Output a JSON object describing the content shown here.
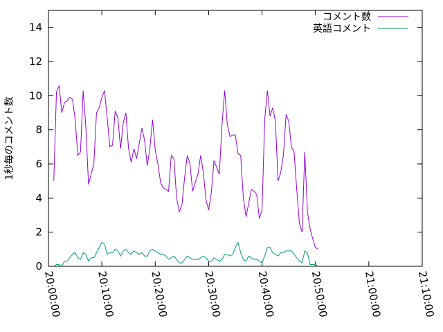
{
  "chart_data": {
    "type": "line",
    "title": "",
    "xlabel": "",
    "ylabel": "1秒毎のコメント数",
    "xlim": [
      "20:00:00",
      "21:10:00"
    ],
    "ylim": [
      0,
      15
    ],
    "x_ticks": [
      "20:00:00",
      "20:10:00",
      "20:20:00",
      "20:30:00",
      "20:40:00",
      "20:50:00",
      "21:00:00",
      "21:10:00"
    ],
    "y_ticks": [
      0,
      2,
      4,
      6,
      8,
      10,
      12,
      14
    ],
    "grid": false,
    "legend_position": "top-right",
    "x_step_seconds": 30,
    "x_start": "20:01:00",
    "series": [
      {
        "name": "コメント数",
        "color": "#9400d3",
        "values": [
          5.0,
          10.2,
          10.6,
          9.0,
          9.6,
          9.7,
          9.9,
          9.8,
          8.6,
          6.5,
          6.7,
          10.3,
          8.2,
          4.8,
          5.4,
          6.0,
          9.0,
          9.3,
          9.9,
          10.3,
          8.7,
          7.0,
          7.1,
          9.1,
          8.7,
          6.9,
          8.4,
          9.0,
          6.9,
          6.1,
          6.9,
          6.3,
          7.2,
          8.1,
          7.4,
          5.9,
          6.9,
          8.6,
          6.8,
          6.0,
          4.9,
          4.6,
          4.5,
          4.4,
          6.5,
          6.3,
          4.0,
          3.2,
          3.6,
          5.2,
          6.5,
          6.0,
          4.4,
          4.9,
          5.4,
          6.5,
          5.5,
          3.9,
          3.3,
          4.3,
          6.2,
          5.8,
          5.4,
          8.3,
          10.3,
          8.3,
          7.6,
          7.7,
          7.7,
          6.6,
          6.5,
          4.0,
          2.9,
          3.7,
          4.5,
          4.4,
          4.2,
          2.8,
          3.3,
          8.6,
          10.3,
          8.8,
          9.3,
          8.5,
          5.0,
          5.5,
          6.5,
          8.9,
          8.5,
          7.0,
          6.7,
          4.5,
          2.5,
          2.0,
          6.7,
          3.2,
          2.2,
          1.6,
          1.1,
          1.0
        ]
      },
      {
        "name": "英語コメント",
        "color": "#009e73",
        "values": [
          0.0,
          0.1,
          0.1,
          0.0,
          0.3,
          0.3,
          0.5,
          0.7,
          0.8,
          0.5,
          0.4,
          0.8,
          0.7,
          0.3,
          0.5,
          0.5,
          0.8,
          1.1,
          1.4,
          1.3,
          0.7,
          0.8,
          0.8,
          1.0,
          0.9,
          0.6,
          0.9,
          1.0,
          0.8,
          0.7,
          0.9,
          0.8,
          0.7,
          0.8,
          0.6,
          0.6,
          0.9,
          1.0,
          0.9,
          0.8,
          0.7,
          0.7,
          0.6,
          0.4,
          0.5,
          0.6,
          0.4,
          0.2,
          0.2,
          0.4,
          0.6,
          0.5,
          0.4,
          0.4,
          0.4,
          0.5,
          0.6,
          0.5,
          0.3,
          0.3,
          0.5,
          0.4,
          0.3,
          0.4,
          0.7,
          0.7,
          0.6,
          0.7,
          1.1,
          1.4,
          0.8,
          0.4,
          0.3,
          0.6,
          0.5,
          0.4,
          0.4,
          0.3,
          0.2,
          0.6,
          1.1,
          1.1,
          0.8,
          0.7,
          0.6,
          0.8,
          0.8,
          0.9,
          0.9,
          0.9,
          0.7,
          0.5,
          0.3,
          0.2,
          0.9,
          0.8,
          0.1,
          0.1,
          0.1,
          0.0
        ]
      }
    ]
  }
}
